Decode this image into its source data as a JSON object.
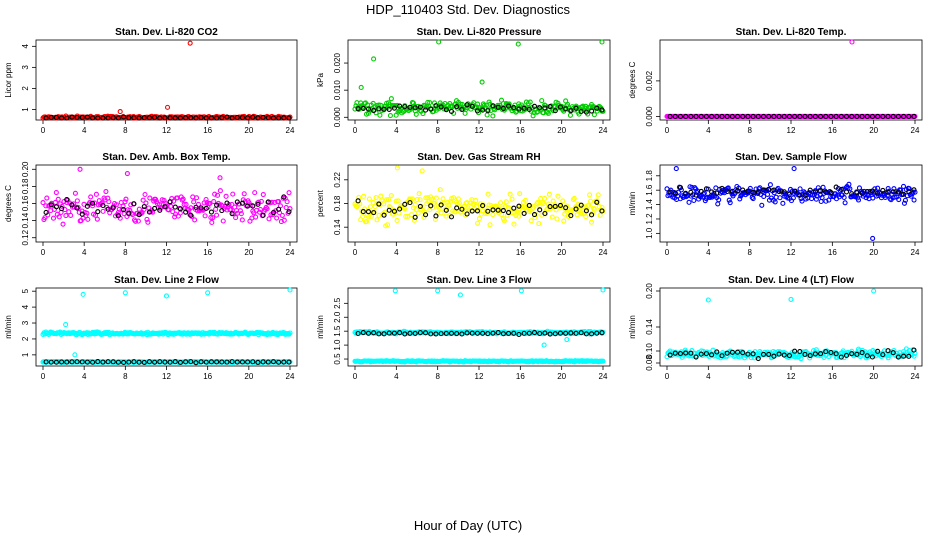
{
  "title": "HDP_110403  Std. Dev. Diagnostics",
  "xlabel": "Hour of Day (UTC)",
  "chart_data": [
    {
      "type": "scatter",
      "title": "Stan. Dev. Li-820 CO2",
      "ylabel": "Licor ppm",
      "xlim": [
        0,
        24
      ],
      "ylim": [
        0.5,
        4.3
      ],
      "xticks": [
        "0",
        "4",
        "8",
        "12",
        "16",
        "20",
        "24"
      ],
      "yticks": [
        {
          "v": 1,
          "t": "1"
        },
        {
          "v": 2,
          "t": "2"
        },
        {
          "v": 3,
          "t": "3"
        },
        {
          "v": 4,
          "t": "4"
        }
      ],
      "color": "#ff0000",
      "baseline": 0.62,
      "spread": 0.05,
      "highlight_base": 0.6,
      "highlight_spread": 0.04,
      "outliers": [
        {
          "x": 14.3,
          "y": 4.15
        },
        {
          "x": 12.1,
          "y": 1.1
        },
        {
          "x": 7.5,
          "y": 0.9
        }
      ]
    },
    {
      "type": "scatter",
      "title": "Stan. Dev. Li-820 Pressure",
      "ylabel": "kPa",
      "xlim": [
        0,
        24
      ],
      "ylim": [
        -0.001,
        0.0285
      ],
      "xticks": [
        "0",
        "4",
        "8",
        "12",
        "16",
        "20",
        "24"
      ],
      "yticks": [
        {
          "v": 0,
          "t": "0.000"
        },
        {
          "v": 0.01,
          "t": "0.010"
        },
        {
          "v": 0.02,
          "t": "0.020"
        }
      ],
      "color": "#00cc00",
      "baseline": 0.0035,
      "spread": 0.0025,
      "highlight_base": 0.003,
      "highlight_spread": 0.0015,
      "outliers": [
        {
          "x": 1.8,
          "y": 0.0215
        },
        {
          "x": 8.1,
          "y": 0.028
        },
        {
          "x": 15.8,
          "y": 0.027
        },
        {
          "x": 23.9,
          "y": 0.028
        },
        {
          "x": 0.6,
          "y": 0.011
        },
        {
          "x": 12.3,
          "y": 0.013
        }
      ]
    },
    {
      "type": "scatter",
      "title": "Stan. Dev. Li-820 Temp.",
      "ylabel": "degrees C",
      "xlim": [
        0,
        24
      ],
      "ylim": [
        -0.0002,
        0.0043
      ],
      "xticks": [
        "0",
        "4",
        "8",
        "12",
        "16",
        "20",
        "24"
      ],
      "yticks": [
        {
          "v": 0,
          "t": "0.000"
        },
        {
          "v": 0.002,
          "t": "0.002"
        }
      ],
      "color": "#ff00ff",
      "baseline": 0.0,
      "spread": 0.0,
      "highlight_base": 0.0,
      "highlight_spread": 0.0,
      "outliers": [
        {
          "x": 17.9,
          "y": 0.0042
        }
      ]
    },
    {
      "type": "scatter",
      "title": "Stan. Dev. Amb. Box Temp.",
      "ylabel": "degrees C",
      "xlim": [
        0,
        24
      ],
      "ylim": [
        0.115,
        0.205
      ],
      "xticks": [
        "0",
        "4",
        "8",
        "12",
        "16",
        "20",
        "24"
      ],
      "yticks": [
        {
          "v": 0.12,
          "t": "0.12"
        },
        {
          "v": 0.14,
          "t": "0.14"
        },
        {
          "v": 0.16,
          "t": "0.16"
        },
        {
          "v": 0.18,
          "t": "0.18"
        },
        {
          "v": 0.2,
          "t": "0.20"
        }
      ],
      "color": "#ff00ff",
      "baseline": 0.155,
      "spread": 0.018,
      "highlight_base": 0.155,
      "highlight_spread": 0.01,
      "outliers": [
        {
          "x": 3.6,
          "y": 0.2
        },
        {
          "x": 8.2,
          "y": 0.195
        },
        {
          "x": 17.2,
          "y": 0.19
        }
      ]
    },
    {
      "type": "scatter",
      "title": "Stan. Dev. Gas Stream RH",
      "ylabel": "percent",
      "xlim": [
        0,
        24
      ],
      "ylim": [
        0.115,
        0.245
      ],
      "xticks": [
        "0",
        "4",
        "8",
        "12",
        "16",
        "20",
        "24"
      ],
      "yticks": [
        {
          "v": 0.14,
          "t": "0.14"
        },
        {
          "v": 0.18,
          "t": "0.18"
        },
        {
          "v": 0.22,
          "t": "0.22"
        }
      ],
      "color": "#ffff00",
      "baseline": 0.172,
      "spread": 0.025,
      "highlight_base": 0.17,
      "highlight_spread": 0.015,
      "outliers": [
        {
          "x": 4.1,
          "y": 0.24
        },
        {
          "x": 6.5,
          "y": 0.235
        }
      ]
    },
    {
      "type": "scatter",
      "title": "Stan. Dev. Sample Flow",
      "ylabel": "ml/min",
      "xlim": [
        0,
        24
      ],
      "ylim": [
        0.88,
        1.95
      ],
      "xticks": [
        "0",
        "4",
        "8",
        "12",
        "16",
        "20",
        "24"
      ],
      "yticks": [
        {
          "v": 1.0,
          "t": "1.0"
        },
        {
          "v": 1.2,
          "t": "1.2"
        },
        {
          "v": 1.4,
          "t": "1.4"
        },
        {
          "v": 1.6,
          "t": "1.6"
        },
        {
          "v": 1.8,
          "t": "1.8"
        }
      ],
      "color": "#0000ff",
      "baseline": 1.55,
      "spread": 0.12,
      "highlight_base": 1.58,
      "highlight_spread": 0.06,
      "outliers": [
        {
          "x": 19.9,
          "y": 0.93
        },
        {
          "x": 12.3,
          "y": 1.9
        },
        {
          "x": 0.9,
          "y": 1.9
        }
      ]
    },
    {
      "type": "scatter",
      "title": "Stan. Dev. Line 2 Flow",
      "ylabel": "ml/min",
      "xlim": [
        0,
        24
      ],
      "ylim": [
        0.3,
        5.2
      ],
      "xticks": [
        "0",
        "4",
        "8",
        "12",
        "16",
        "20",
        "24"
      ],
      "yticks": [
        {
          "v": 1,
          "t": "1"
        },
        {
          "v": 2,
          "t": "2"
        },
        {
          "v": 3,
          "t": "3"
        },
        {
          "v": 4,
          "t": "4"
        },
        {
          "v": 5,
          "t": "5"
        }
      ],
      "color": "#00ffff",
      "baseline": 2.35,
      "spread": 0.08,
      "second_baseline": 0.55,
      "second_spread": 0.03,
      "highlight_base": 0.55,
      "highlight_spread": 0.03,
      "outliers": [
        {
          "x": 3.9,
          "y": 4.8
        },
        {
          "x": 8.0,
          "y": 4.9
        },
        {
          "x": 12.0,
          "y": 4.7
        },
        {
          "x": 16.0,
          "y": 4.9
        },
        {
          "x": 24.0,
          "y": 5.1
        },
        {
          "x": 2.2,
          "y": 2.9
        },
        {
          "x": 3.1,
          "y": 1.0
        }
      ]
    },
    {
      "type": "scatter",
      "title": "Stan. Dev. Line 3 Flow",
      "ylabel": "ml/min",
      "xlim": [
        0,
        24
      ],
      "ylim": [
        0.25,
        3.05
      ],
      "xticks": [
        "0",
        "4",
        "8",
        "12",
        "16",
        "20",
        "24"
      ],
      "yticks": [
        {
          "v": 0.5,
          "t": "0.5"
        },
        {
          "v": 1.0,
          "t": "1.0"
        },
        {
          "v": 1.5,
          "t": "1.5"
        },
        {
          "v": 2.0,
          "t": "2.0"
        },
        {
          "v": 2.5,
          "t": "2.5"
        }
      ],
      "color": "#00ffff",
      "baseline": 1.45,
      "spread": 0.04,
      "second_baseline": 0.42,
      "second_spread": 0.02,
      "highlight_base": 1.42,
      "highlight_spread": 0.04,
      "outliers": [
        {
          "x": 3.9,
          "y": 2.95
        },
        {
          "x": 8.0,
          "y": 2.95
        },
        {
          "x": 10.2,
          "y": 2.8
        },
        {
          "x": 16.1,
          "y": 2.95
        },
        {
          "x": 24.0,
          "y": 3.0
        },
        {
          "x": 18.3,
          "y": 1.0
        },
        {
          "x": 20.5,
          "y": 1.2
        }
      ]
    },
    {
      "type": "scatter",
      "title": "Stan. Dev. Line 4 (LT) Flow",
      "ylabel": "ml/min",
      "xlim": [
        0,
        24
      ],
      "ylim": [
        0.075,
        0.205
      ],
      "xticks": [
        "0",
        "4",
        "8",
        "12",
        "16",
        "20",
        "24"
      ],
      "yticks": [
        {
          "v": 0.08,
          "t": "0.08"
        },
        {
          "v": 0.1,
          "t": "0.10"
        },
        {
          "v": 0.14,
          "t": "0.14"
        },
        {
          "v": 0.2,
          "t": "0.20"
        }
      ],
      "color": "#00ffff",
      "baseline": 0.095,
      "spread": 0.007,
      "highlight_base": 0.095,
      "highlight_spread": 0.006,
      "outliers": [
        {
          "x": 4.0,
          "y": 0.185
        },
        {
          "x": 12.0,
          "y": 0.186
        },
        {
          "x": 20.0,
          "y": 0.2
        }
      ]
    }
  ]
}
